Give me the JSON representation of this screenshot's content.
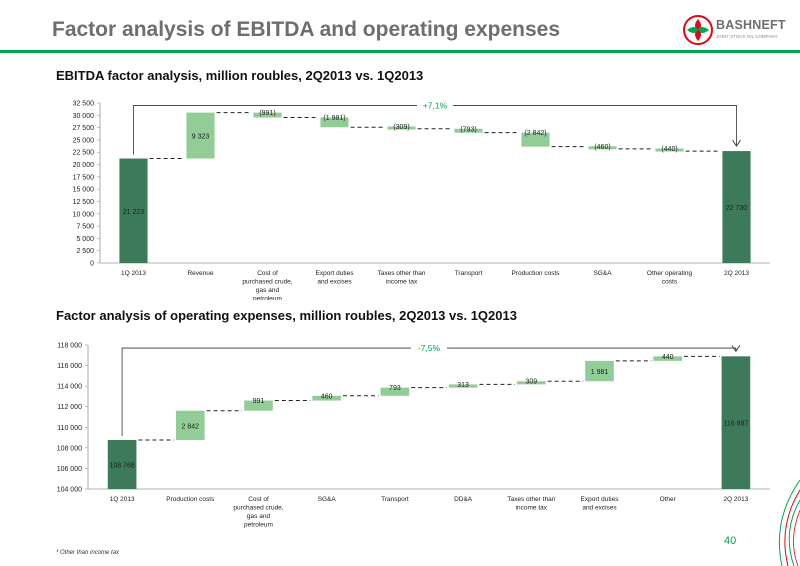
{
  "page": {
    "title": "Factor analysis of EBITDA and operating expenses",
    "logo_name": "BASHNEFT",
    "logo_sub": "JOINT STOCK OIL COMPANY",
    "page_number": "40",
    "footnote": "* Other than income tax"
  },
  "colors": {
    "accent": "#00a651",
    "bar_dark": "#3d7a59",
    "bar_light": "#92cc96",
    "title_gray": "#6d6e70",
    "logo_red": "#e30613"
  },
  "chart_data": [
    {
      "type": "waterfall",
      "title": "EBITDA factor analysis, million roubles, 2Q2013 vs. 1Q2013",
      "categories": [
        "1Q 2013",
        "Revenue",
        "Cost of purchased crude, gas and petroleum products",
        "Export duties and excises",
        "Taxes other than income tax",
        "Transport",
        "Production costs",
        "SG&A",
        "Other operating costs",
        "2Q 2013"
      ],
      "values": [
        21223,
        9323,
        -991,
        -1981,
        -309,
        -793,
        -2842,
        -460,
        -440,
        22730
      ],
      "labels": [
        "21 223",
        "9 323",
        "(991)",
        "(1 981)",
        "(309)",
        "(793)",
        "(2 842)",
        "(460)",
        "(440)",
        "22 730"
      ],
      "kinds": [
        "total",
        "delta",
        "delta",
        "delta",
        "delta",
        "delta",
        "delta",
        "delta",
        "delta",
        "total"
      ],
      "ylim": [
        0,
        32500
      ],
      "yticks": [
        0,
        2500,
        5000,
        7500,
        10000,
        12500,
        15000,
        17500,
        20000,
        22500,
        25000,
        27500,
        30000,
        32500
      ],
      "ytick_labels": [
        "0",
        "2 500",
        "5 000",
        "7 500",
        "10 000",
        "12 500",
        "15 000",
        "17 500",
        "20 000",
        "22 500",
        "25 000",
        "27 500",
        "30 000",
        "32 500"
      ],
      "annotation": "+7,1%",
      "annotation_y": 32000,
      "grid": false
    },
    {
      "type": "waterfall",
      "title": "Factor analysis of operating expenses, million roubles, 2Q2013 vs. 1Q2013",
      "categories": [
        "1Q 2013",
        "Production costs",
        "Cost of purchased crude, gas and petroleum products",
        "SG&A",
        "Transport",
        "DD&A",
        "Taxes other than income tax",
        "Export duties and excises",
        "Other",
        "2Q 2013"
      ],
      "values": [
        108768,
        2842,
        991,
        460,
        793,
        313,
        309,
        1981,
        440,
        116897
      ],
      "labels": [
        "108 768",
        "2 842",
        "991",
        "460",
        "793",
        "313",
        "309",
        "1 981",
        "440",
        "116 897"
      ],
      "kinds": [
        "total",
        "delta",
        "delta",
        "delta",
        "delta",
        "delta",
        "delta",
        "delta",
        "delta",
        "total"
      ],
      "ylim": [
        104000,
        118000
      ],
      "yticks": [
        104000,
        106000,
        108000,
        110000,
        112000,
        114000,
        116000,
        118000
      ],
      "ytick_labels": [
        "104 000",
        "106 000",
        "108 000",
        "110 000",
        "112 000",
        "114 000",
        "116 000",
        "118 000"
      ],
      "annotation": "-7,5%",
      "annotation_y": 117700,
      "grid": false
    }
  ]
}
